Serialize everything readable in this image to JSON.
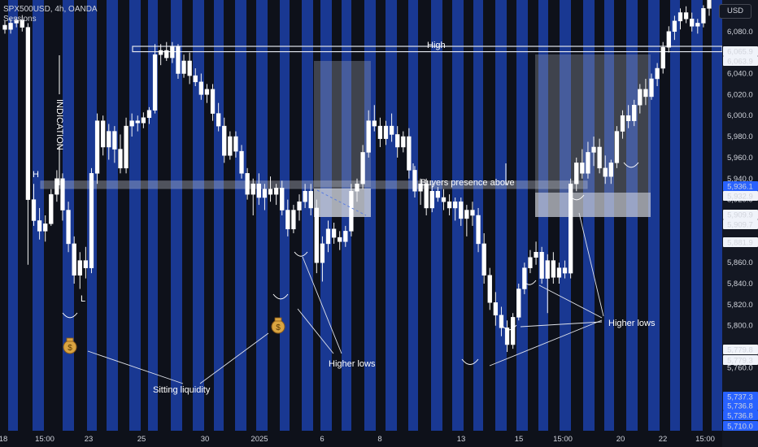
{
  "header": {
    "symbol_line": "SPX500USD, 4h, OANDA",
    "indicator": "Sessions"
  },
  "currency_button": "USD",
  "annotations": {
    "high": "High",
    "indication": "INDICATION",
    "h": "H",
    "l": "L",
    "buyers": "Buyers presence above",
    "sitting_liquidity": "Sitting liquidity",
    "higher_lows_1": "Higher lows",
    "higher_lows_2": "Higher lows"
  },
  "price_tags": [
    {
      "label": "6,065.9",
      "price": 6065.9,
      "kind": "gray"
    },
    {
      "label": "6,063.9",
      "price": 6063.9,
      "kind": "gray"
    },
    {
      "label": "5,936.1",
      "price": 5936.1,
      "kind": "blue"
    },
    {
      "label": "5,932.9",
      "price": 5932.9,
      "kind": "gray"
    },
    {
      "label": "5,909.9",
      "price": 5909.9,
      "kind": "gray"
    },
    {
      "label": "5,909.7",
      "price": 5909.7,
      "kind": "gray"
    },
    {
      "label": "5,881.9",
      "price": 5881.9,
      "kind": "gray"
    },
    {
      "label": "5,779.8",
      "price": 5779.8,
      "kind": "gray"
    },
    {
      "label": "5,779.3",
      "price": 5779.3,
      "kind": "gray"
    },
    {
      "label": "5,737.3",
      "price": 5737.3,
      "kind": "blue"
    },
    {
      "label": "5,736.8",
      "price": 5736.8,
      "kind": "blue"
    },
    {
      "label": "5,736.8",
      "price": 5736.8,
      "kind": "blue"
    },
    {
      "label": "5,710.0",
      "price": 5710.0,
      "kind": "blue"
    }
  ],
  "chart_data": {
    "type": "candlestick",
    "y_ticks": [
      "6,080.0",
      "6,040.0",
      "6,020.0",
      "6,000.0",
      "5,980.0",
      "5,960.0",
      "5,940.0",
      "5,920.0",
      "5,860.0",
      "5,840.0",
      "5,820.0",
      "5,800.0",
      "5,760.0"
    ],
    "x_ticks": [
      "18",
      "15:00",
      "23",
      "25",
      "30",
      "2025",
      "6",
      "8",
      "13",
      "15",
      "15:00",
      "20",
      "22",
      "15:00"
    ],
    "key_levels": {
      "high_zone": [
        6063.9,
        6065.9
      ],
      "buyers_zone": [
        5932.9,
        5936.1
      ]
    },
    "candles": [
      [
        6086,
        6090,
        6078,
        6082
      ],
      [
        6082,
        6092,
        6078,
        6088
      ],
      [
        6088,
        6094,
        6084,
        6091
      ],
      [
        6091,
        6095,
        6080,
        6084
      ],
      [
        6084,
        6088,
        5858,
        5920
      ],
      [
        5920,
        5935,
        5895,
        5900
      ],
      [
        5900,
        5912,
        5882,
        5890
      ],
      [
        5890,
        5905,
        5880,
        5897
      ],
      [
        5897,
        5930,
        5895,
        5925
      ],
      [
        5925,
        5948,
        5918,
        5940
      ],
      [
        5940,
        5945,
        5900,
        5910
      ],
      [
        5910,
        5918,
        5870,
        5878
      ],
      [
        5878,
        5885,
        5840,
        5848
      ],
      [
        5848,
        5870,
        5835,
        5862
      ],
      [
        5862,
        5875,
        5845,
        5855
      ],
      [
        5855,
        5950,
        5850,
        5945
      ],
      [
        5945,
        6002,
        5935,
        5995
      ],
      [
        5995,
        6000,
        5962,
        5970
      ],
      [
        5970,
        5992,
        5958,
        5985
      ],
      [
        5985,
        5990,
        5955,
        5968
      ],
      [
        5968,
        5982,
        5945,
        5950
      ],
      [
        5950,
        5998,
        5945,
        5990
      ],
      [
        5990,
        6002,
        5980,
        5995
      ],
      [
        5995,
        6000,
        5985,
        5993
      ],
      [
        5993,
        6003,
        5988,
        5998
      ],
      [
        5998,
        6008,
        5992,
        6005
      ],
      [
        6005,
        6068,
        6002,
        6058
      ],
      [
        6058,
        6068,
        6048,
        6062
      ],
      [
        6062,
        6070,
        6052,
        6055
      ],
      [
        6055,
        6070,
        6050,
        6066
      ],
      [
        6066,
        6068,
        6035,
        6040
      ],
      [
        6040,
        6058,
        6036,
        6052
      ],
      [
        6052,
        6060,
        6030,
        6038
      ],
      [
        6038,
        6045,
        6028,
        6032
      ],
      [
        6032,
        6040,
        6015,
        6020
      ],
      [
        6020,
        6030,
        6012,
        6025
      ],
      [
        6025,
        6030,
        5995,
        6002
      ],
      [
        6002,
        6012,
        5985,
        5990
      ],
      [
        5990,
        5998,
        5955,
        5962
      ],
      [
        5962,
        5985,
        5958,
        5980
      ],
      [
        5980,
        5985,
        5960,
        5966
      ],
      [
        5966,
        5972,
        5940,
        5945
      ],
      [
        5945,
        5950,
        5920,
        5925
      ],
      [
        5925,
        5940,
        5905,
        5935
      ],
      [
        5935,
        5945,
        5915,
        5922
      ],
      [
        5922,
        5935,
        5910,
        5930
      ],
      [
        5930,
        5942,
        5918,
        5925
      ],
      [
        5925,
        5935,
        5915,
        5931
      ],
      [
        5931,
        5938,
        5905,
        5910
      ],
      [
        5910,
        5920,
        5885,
        5892
      ],
      [
        5892,
        5915,
        5888,
        5910
      ],
      [
        5910,
        5925,
        5900,
        5918
      ],
      [
        5918,
        5935,
        5912,
        5928
      ],
      [
        5928,
        5935,
        5905,
        5912
      ],
      [
        5912,
        5920,
        5850,
        5860
      ],
      [
        5860,
        5885,
        5842,
        5878
      ],
      [
        5878,
        5900,
        5870,
        5892
      ],
      [
        5892,
        5898,
        5878,
        5884
      ],
      [
        5884,
        5890,
        5872,
        5880
      ],
      [
        5880,
        5895,
        5875,
        5890
      ],
      [
        5890,
        5935,
        5885,
        5928
      ],
      [
        5928,
        5940,
        5918,
        5935
      ],
      [
        5935,
        5972,
        5930,
        5965
      ],
      [
        5965,
        6005,
        5960,
        5995
      ],
      [
        5995,
        6010,
        5985,
        5990
      ],
      [
        5990,
        5998,
        5970,
        5978
      ],
      [
        5978,
        5995,
        5972,
        5990
      ],
      [
        5990,
        6002,
        5975,
        5982
      ],
      [
        5982,
        5990,
        5960,
        5970
      ],
      [
        5970,
        5985,
        5965,
        5980
      ],
      [
        5980,
        5988,
        5940,
        5948
      ],
      [
        5948,
        5952,
        5922,
        5928
      ],
      [
        5928,
        5940,
        5915,
        5935
      ],
      [
        5935,
        5940,
        5905,
        5912
      ],
      [
        5912,
        5935,
        5908,
        5928
      ],
      [
        5928,
        5932,
        5918,
        5922
      ],
      [
        5922,
        5930,
        5910,
        5918
      ],
      [
        5918,
        5925,
        5905,
        5912
      ],
      [
        5912,
        5922,
        5900,
        5918
      ],
      [
        5918,
        5922,
        5895,
        5902
      ],
      [
        5902,
        5915,
        5885,
        5910
      ],
      [
        5910,
        5918,
        5895,
        5905
      ],
      [
        5905,
        5912,
        5870,
        5878
      ],
      [
        5878,
        5888,
        5840,
        5848
      ],
      [
        5848,
        5855,
        5815,
        5822
      ],
      [
        5822,
        5832,
        5800,
        5810
      ],
      [
        5810,
        5818,
        5790,
        5798
      ],
      [
        5798,
        5805,
        5775,
        5782
      ],
      [
        5782,
        5812,
        5778,
        5808
      ],
      [
        5808,
        5840,
        5805,
        5835
      ],
      [
        5835,
        5860,
        5830,
        5855
      ],
      [
        5855,
        5872,
        5850,
        5865
      ],
      [
        5865,
        5880,
        5858,
        5870
      ],
      [
        5870,
        5875,
        5840,
        5845
      ],
      [
        5845,
        5868,
        5812,
        5862
      ],
      [
        5862,
        5870,
        5840,
        5846
      ],
      [
        5846,
        5860,
        5840,
        5855
      ],
      [
        5855,
        5862,
        5845,
        5850
      ],
      [
        5850,
        5940,
        5845,
        5935
      ],
      [
        5935,
        5960,
        5928,
        5955
      ],
      [
        5955,
        5968,
        5940,
        5945
      ],
      [
        5945,
        5975,
        5940,
        5965
      ],
      [
        5965,
        5980,
        5952,
        5970
      ],
      [
        5970,
        5978,
        5945,
        5950
      ],
      [
        5950,
        5962,
        5935,
        5942
      ],
      [
        5942,
        5958,
        5935,
        5955
      ],
      [
        5955,
        5990,
        5950,
        5985
      ],
      [
        5985,
        6005,
        5978,
        6000
      ],
      [
        6000,
        6010,
        5988,
        5995
      ],
      [
        5995,
        6015,
        5990,
        6010
      ],
      [
        6010,
        6030,
        6002,
        6025
      ],
      [
        6025,
        6035,
        6010,
        6018
      ],
      [
        6018,
        6040,
        6015,
        6035
      ],
      [
        6035,
        6050,
        6028,
        6045
      ],
      [
        6045,
        6070,
        6040,
        6065
      ],
      [
        6065,
        6085,
        6060,
        6080
      ],
      [
        6080,
        6095,
        6072,
        6090
      ],
      [
        6090,
        6102,
        6082,
        6098
      ],
      [
        6098,
        6104,
        6088,
        6092
      ],
      [
        6092,
        6098,
        6080,
        6085
      ],
      [
        6085,
        6092,
        6078,
        6088
      ],
      [
        6088,
        6105,
        6084,
        6102
      ],
      [
        6102,
        6115,
        6095,
        6110
      ]
    ]
  }
}
